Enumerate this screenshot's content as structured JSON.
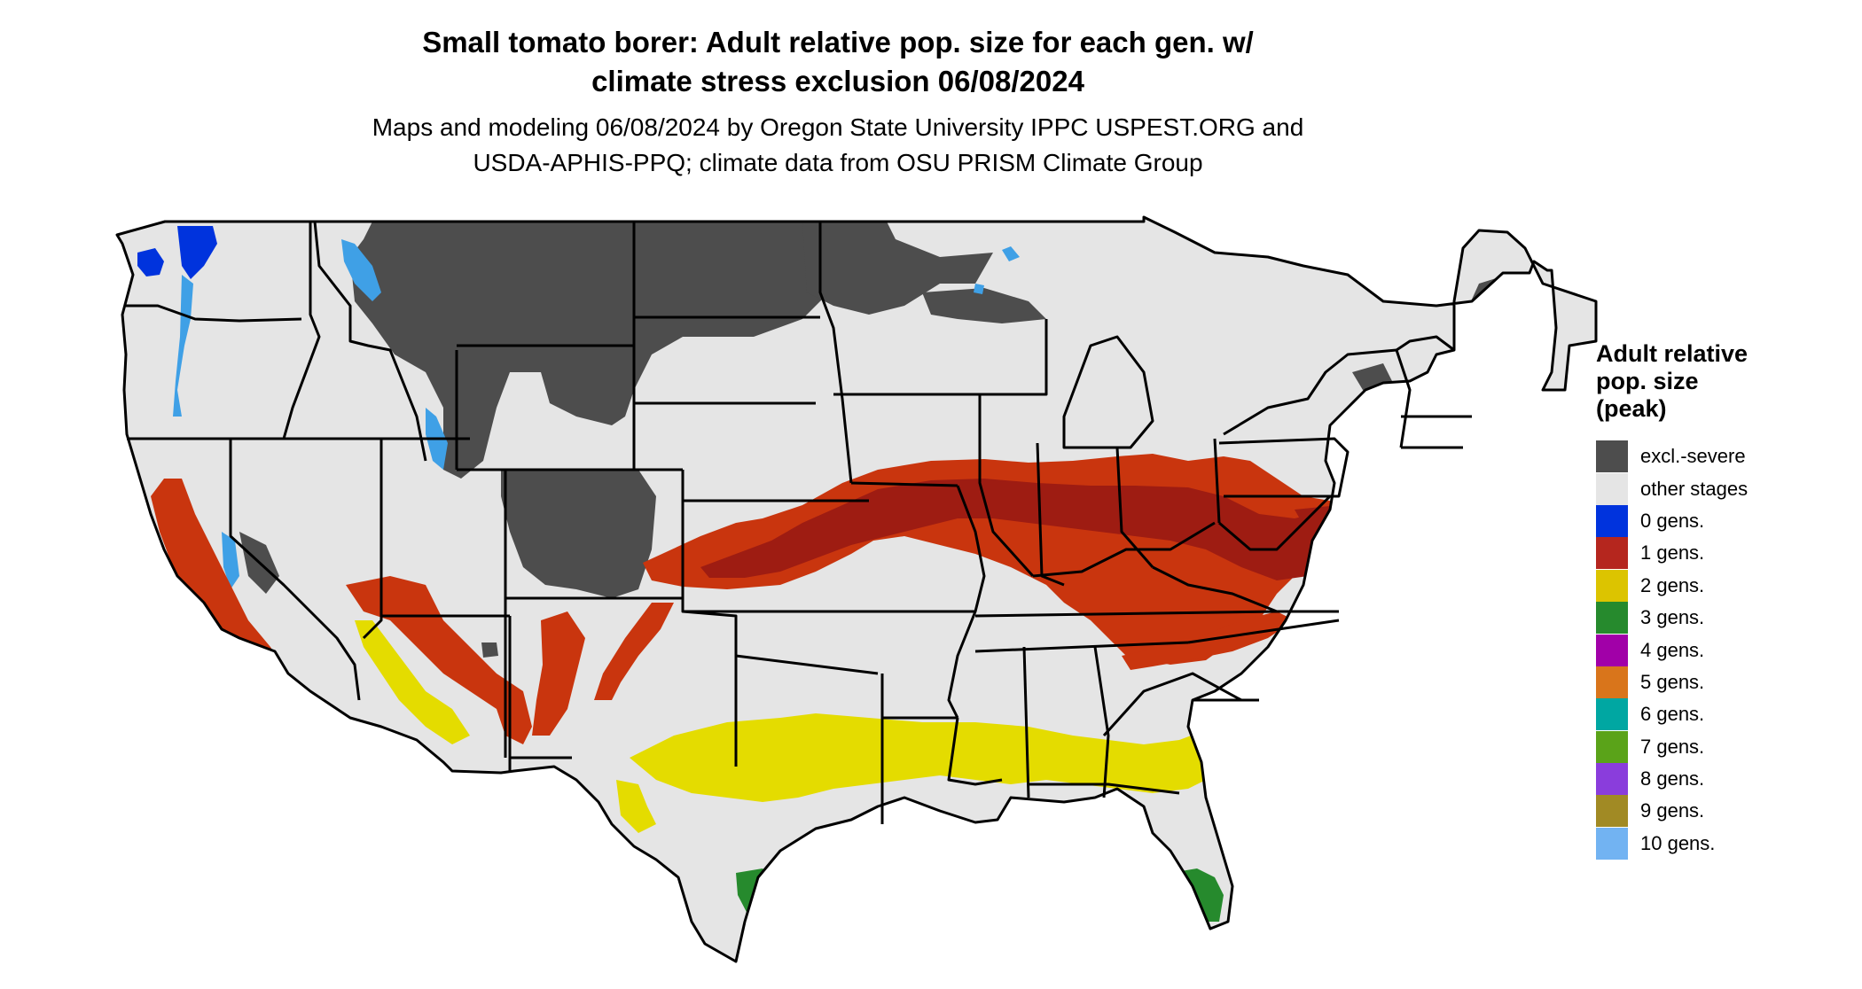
{
  "title_line1": "Small tomato borer: Adult relative pop. size for each gen. w/",
  "title_line2": "climate stress exclusion 06/08/2024",
  "subtitle_line1": "Maps and modeling 06/08/2024 by Oregon State University IPPC USPEST.ORG and",
  "subtitle_line2": "USDA-APHIS-PPQ; climate data from OSU PRISM Climate Group",
  "legend": {
    "title_line1": "Adult relative",
    "title_line2": "pop. size",
    "title_line3": "(peak)",
    "items": [
      {
        "label": "excl.-severe",
        "color": "#4d4d4d"
      },
      {
        "label": "other stages",
        "color": "#e5e5e5"
      },
      {
        "label": "0 gens.",
        "color": "#0033dd"
      },
      {
        "label": "1 gens.",
        "color": "#b5261e"
      },
      {
        "label": "2 gens.",
        "color": "#dcc400"
      },
      {
        "label": "3 gens.",
        "color": "#268a2d"
      },
      {
        "label": "4 gens.",
        "color": "#a100a8"
      },
      {
        "label": "5 gens.",
        "color": "#d9751b"
      },
      {
        "label": "6 gens.",
        "color": "#00a7a2"
      },
      {
        "label": "7 gens.",
        "color": "#5aa319"
      },
      {
        "label": "8 gens.",
        "color": "#8a3ddc"
      },
      {
        "label": "9 gens.",
        "color": "#a18a24"
      },
      {
        "label": "10 gens.",
        "color": "#72b3f2"
      }
    ]
  },
  "map_colors": {
    "base": "#e5e5e5",
    "excluded": "#4d4d4d",
    "one_gen_dark": "#9e1c12",
    "one_gen": "#c9350e",
    "two_gen": "#e4dc00",
    "three_gen": "#268a2d",
    "zero_gen": "#0033dd",
    "ten_gen": "#3fa0e6",
    "border": "#000000"
  }
}
